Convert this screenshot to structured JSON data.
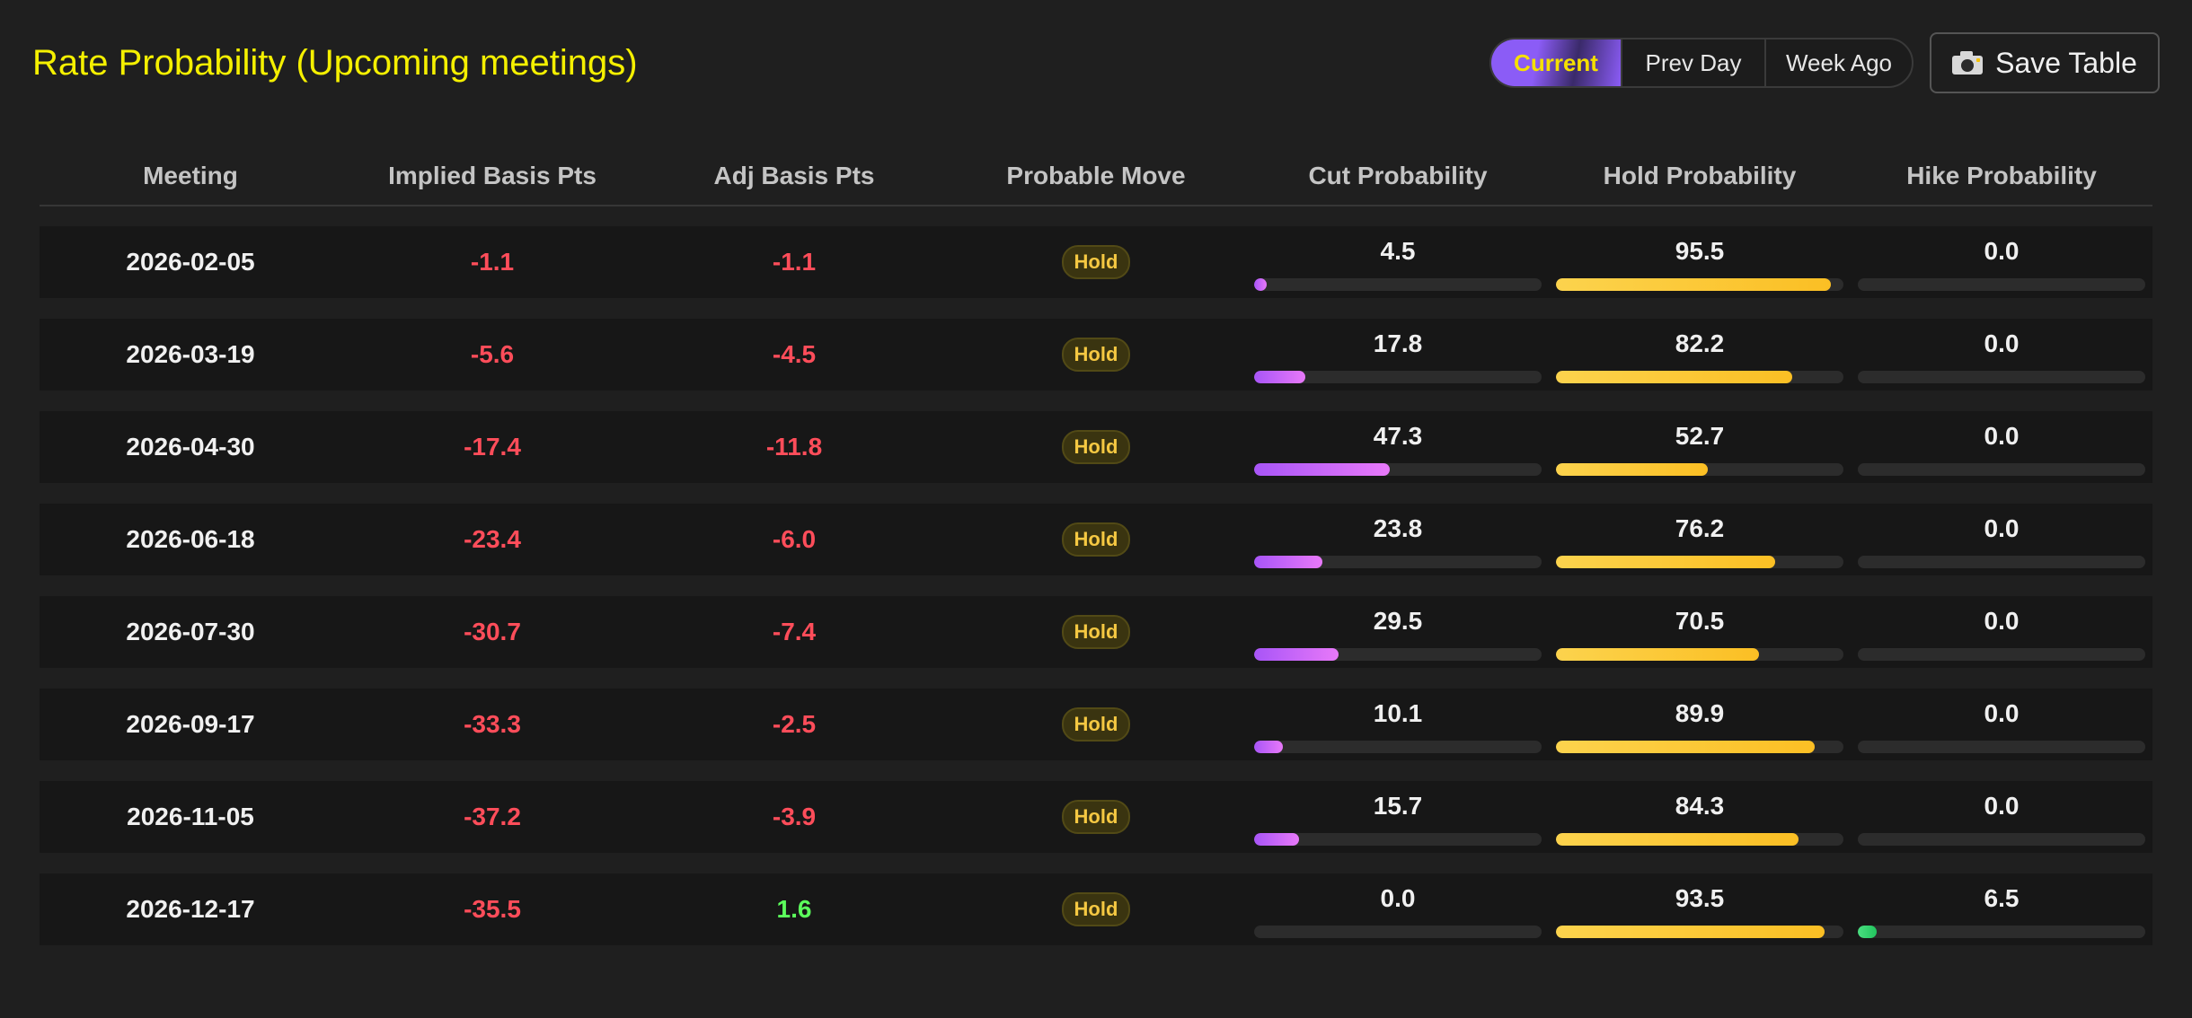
{
  "title": "Rate Probability (Upcoming meetings)",
  "toggle": {
    "options": [
      "Current",
      "Prev Day",
      "Week Ago"
    ],
    "selected": "Current"
  },
  "save_button": {
    "label": "Save Table",
    "icon": "camera-icon"
  },
  "colors": {
    "title": "#f5f000",
    "negative": "#ff4d5a",
    "positive": "#5cff5c",
    "cut_bar": "#a855f7",
    "hold_bar": "#fbbf24",
    "hike_bar": "#4ade80"
  },
  "table": {
    "headers": [
      "Meeting",
      "Implied Basis Pts",
      "Adj Basis Pts",
      "Probable Move",
      "Cut Probability",
      "Hold Probability",
      "Hike Probability"
    ],
    "rows": [
      {
        "meeting": "2026-02-05",
        "implied": "-1.1",
        "adj": "-1.1",
        "move": "Hold",
        "cut": "4.5",
        "hold": "95.5",
        "hike": "0.0"
      },
      {
        "meeting": "2026-03-19",
        "implied": "-5.6",
        "adj": "-4.5",
        "move": "Hold",
        "cut": "17.8",
        "hold": "82.2",
        "hike": "0.0"
      },
      {
        "meeting": "2026-04-30",
        "implied": "-17.4",
        "adj": "-11.8",
        "move": "Hold",
        "cut": "47.3",
        "hold": "52.7",
        "hike": "0.0"
      },
      {
        "meeting": "2026-06-18",
        "implied": "-23.4",
        "adj": "-6.0",
        "move": "Hold",
        "cut": "23.8",
        "hold": "76.2",
        "hike": "0.0"
      },
      {
        "meeting": "2026-07-30",
        "implied": "-30.7",
        "adj": "-7.4",
        "move": "Hold",
        "cut": "29.5",
        "hold": "70.5",
        "hike": "0.0"
      },
      {
        "meeting": "2026-09-17",
        "implied": "-33.3",
        "adj": "-2.5",
        "move": "Hold",
        "cut": "10.1",
        "hold": "89.9",
        "hike": "0.0"
      },
      {
        "meeting": "2026-11-05",
        "implied": "-37.2",
        "adj": "-3.9",
        "move": "Hold",
        "cut": "15.7",
        "hold": "84.3",
        "hike": "0.0"
      },
      {
        "meeting": "2026-12-17",
        "implied": "-35.5",
        "adj": "1.6",
        "move": "Hold",
        "cut": "0.0",
        "hold": "93.5",
        "hike": "6.5"
      }
    ]
  }
}
